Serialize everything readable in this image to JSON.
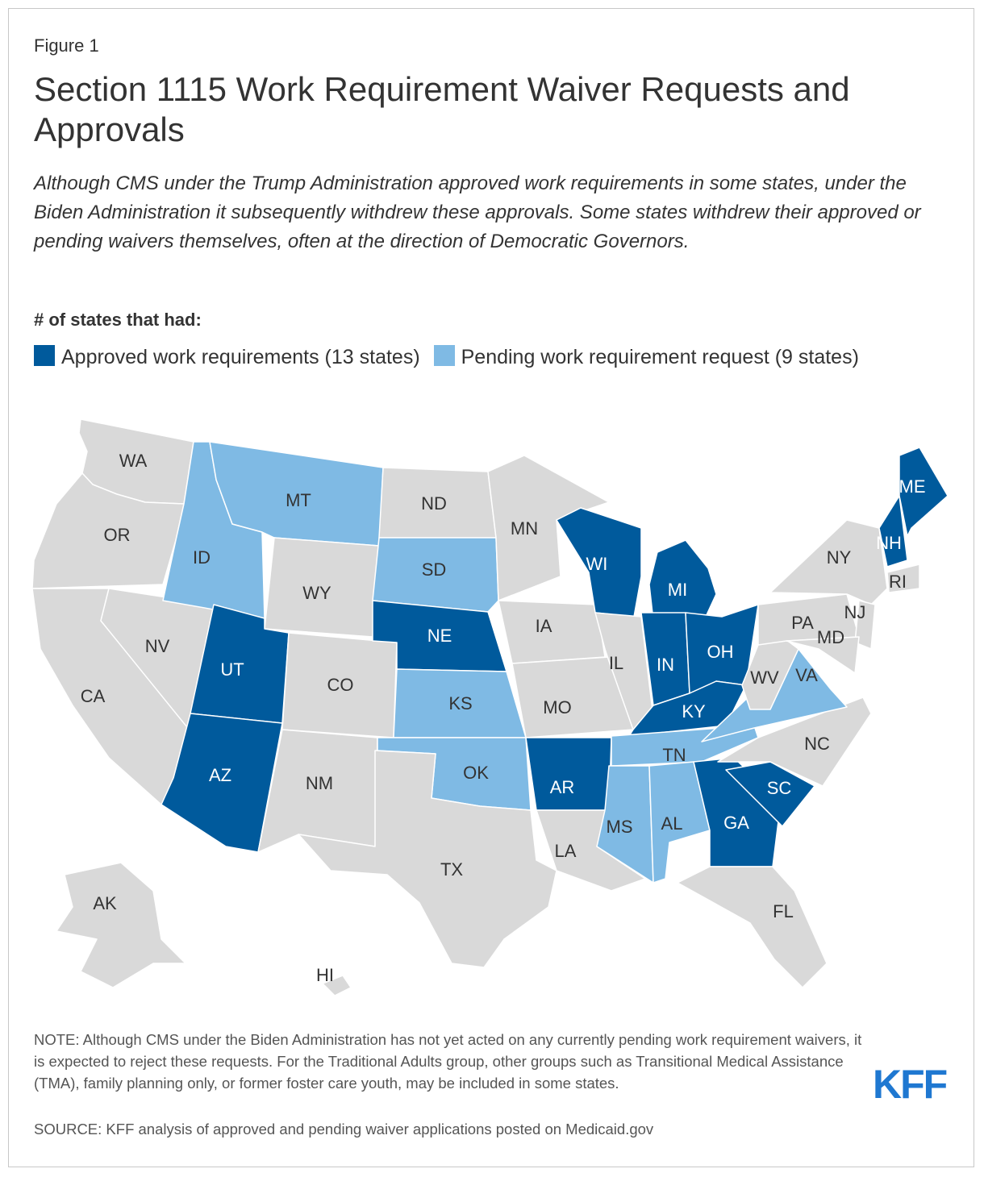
{
  "figure_label": "Figure 1",
  "title": "Section 1115 Work Requirement Waiver Requests and Approvals",
  "subtitle": "Although CMS under the Trump Administration approved work requirements in some states, under the Biden Administration it subsequently withdrew these approvals. Some states withdrew their approved or pending waivers themselves, often at the direction of Democratic Governors.",
  "legend": {
    "heading": "# of states that had:",
    "items": [
      {
        "label": "Approved work requirements (13 states)",
        "color": "#005a9c"
      },
      {
        "label": "Pending work requirement request (9 states)",
        "color": "#7fbae4"
      }
    ]
  },
  "colors": {
    "approved": "#005a9c",
    "pending": "#7fbae4",
    "none": "#d9d9d9",
    "border": "#ffffff"
  },
  "states": [
    {
      "abbr": "WA",
      "status": "none"
    },
    {
      "abbr": "OR",
      "status": "none"
    },
    {
      "abbr": "CA",
      "status": "none"
    },
    {
      "abbr": "NV",
      "status": "none"
    },
    {
      "abbr": "ID",
      "status": "pending"
    },
    {
      "abbr": "MT",
      "status": "pending"
    },
    {
      "abbr": "WY",
      "status": "none"
    },
    {
      "abbr": "UT",
      "status": "approved"
    },
    {
      "abbr": "AZ",
      "status": "approved"
    },
    {
      "abbr": "CO",
      "status": "none"
    },
    {
      "abbr": "NM",
      "status": "none"
    },
    {
      "abbr": "ND",
      "status": "none"
    },
    {
      "abbr": "SD",
      "status": "pending"
    },
    {
      "abbr": "NE",
      "status": "approved"
    },
    {
      "abbr": "KS",
      "status": "pending"
    },
    {
      "abbr": "OK",
      "status": "pending"
    },
    {
      "abbr": "TX",
      "status": "none"
    },
    {
      "abbr": "MN",
      "status": "none"
    },
    {
      "abbr": "IA",
      "status": "none"
    },
    {
      "abbr": "MO",
      "status": "none"
    },
    {
      "abbr": "AR",
      "status": "approved"
    },
    {
      "abbr": "LA",
      "status": "none"
    },
    {
      "abbr": "WI",
      "status": "approved"
    },
    {
      "abbr": "IL",
      "status": "none"
    },
    {
      "abbr": "MI",
      "status": "approved"
    },
    {
      "abbr": "IN",
      "status": "approved"
    },
    {
      "abbr": "OH",
      "status": "approved"
    },
    {
      "abbr": "KY",
      "status": "approved"
    },
    {
      "abbr": "TN",
      "status": "pending"
    },
    {
      "abbr": "MS",
      "status": "pending"
    },
    {
      "abbr": "AL",
      "status": "pending"
    },
    {
      "abbr": "GA",
      "status": "approved"
    },
    {
      "abbr": "FL",
      "status": "none"
    },
    {
      "abbr": "SC",
      "status": "approved"
    },
    {
      "abbr": "NC",
      "status": "none"
    },
    {
      "abbr": "VA",
      "status": "pending"
    },
    {
      "abbr": "WV",
      "status": "none"
    },
    {
      "abbr": "PA",
      "status": "none"
    },
    {
      "abbr": "NY",
      "status": "none"
    },
    {
      "abbr": "NJ",
      "status": "none"
    },
    {
      "abbr": "MD",
      "status": "none"
    },
    {
      "abbr": "RI",
      "status": "none"
    },
    {
      "abbr": "NH",
      "status": "approved"
    },
    {
      "abbr": "ME",
      "status": "approved"
    },
    {
      "abbr": "AK",
      "status": "none"
    },
    {
      "abbr": "HI",
      "status": "none"
    }
  ],
  "note": "NOTE: Although CMS under the Biden Administration has not yet acted on any currently pending work requirement waivers, it is expected to reject these requests. For the Traditional Adults group, other groups such as Transitional Medical Assistance (TMA), family planning only, or former foster care youth, may be included in some states.",
  "source": "SOURCE: KFF analysis of approved and pending waiver applications posted on Medicaid.gov",
  "logo": "KFF"
}
